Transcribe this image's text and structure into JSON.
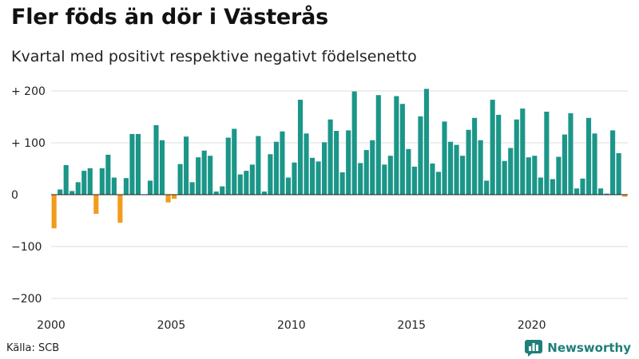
{
  "title": "Fler föds än dör i Västerås",
  "subtitle": "Kvartal med positivt respektive negativt födelsenetto",
  "source": "Källa: SCB",
  "brand": "Newsworthy",
  "colors": {
    "positive": "#1b9688",
    "negative": "#f29c1b",
    "grid": "#dcdcdc",
    "axis": "#222222",
    "brand": "#1f7f7a"
  },
  "chart_data": {
    "type": "bar",
    "title": "Fler föds än dör i Västerås",
    "subtitle": "Kvartal med positivt respektive negativt födelsenetto",
    "xlabel": "",
    "ylabel": "",
    "ylim": [
      -200,
      200
    ],
    "y_ticks": [
      {
        "value": 200,
        "label": "+ 200"
      },
      {
        "value": 100,
        "label": "+ 100"
      },
      {
        "value": 0,
        "label": "0"
      },
      {
        "value": -100,
        "label": "−100"
      },
      {
        "value": -200,
        "label": "−200"
      }
    ],
    "x_ticks": [
      "2000",
      "2005",
      "2010",
      "2015",
      "2020"
    ],
    "x_tick_years": [
      2000,
      2005,
      2010,
      2015,
      2020
    ],
    "start_year": 2000,
    "periods_per_year": 4,
    "values": [
      -65,
      10,
      57,
      7,
      24,
      46,
      51,
      -37,
      51,
      77,
      33,
      -54,
      32,
      117,
      117,
      0,
      27,
      134,
      105,
      -15,
      -8,
      59,
      112,
      24,
      72,
      85,
      75,
      6,
      16,
      110,
      127,
      39,
      46,
      58,
      113,
      6,
      78,
      102,
      122,
      33,
      62,
      183,
      118,
      71,
      64,
      101,
      145,
      123,
      43,
      124,
      199,
      61,
      86,
      105,
      192,
      58,
      75,
      190,
      175,
      88,
      54,
      151,
      204,
      60,
      44,
      141,
      102,
      96,
      75,
      125,
      148,
      105,
      27,
      183,
      154,
      65,
      90,
      145,
      166,
      72,
      75,
      33,
      160,
      30,
      73,
      116,
      157,
      12,
      31,
      148,
      118,
      12,
      2,
      124,
      80,
      -4
    ]
  }
}
